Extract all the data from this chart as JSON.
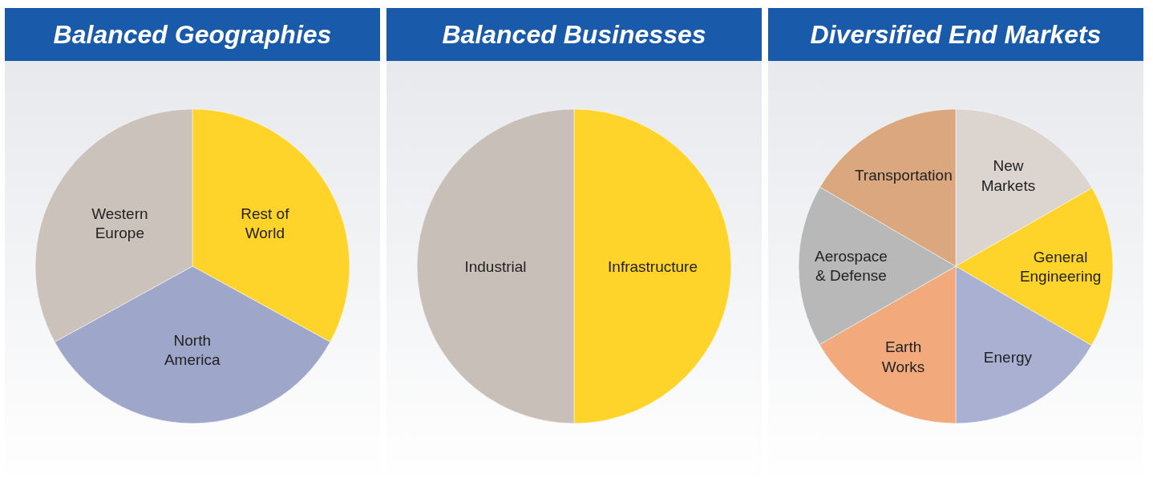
{
  "chart_data": [
    {
      "type": "pie",
      "title": "Balanced Geographies",
      "categories": [
        "Rest of World",
        "North America",
        "Western Europe"
      ],
      "values": [
        33,
        34,
        33
      ],
      "colors": [
        "#ffd42a",
        "#9ea6c9",
        "#cbc2bb"
      ]
    },
    {
      "type": "pie",
      "title": "Balanced Businesses",
      "categories": [
        "Infrastructure",
        "Industrial"
      ],
      "values": [
        50,
        50
      ],
      "colors": [
        "#ffd42a",
        "#c9bfb9"
      ]
    },
    {
      "type": "pie",
      "title": "Diversified End Markets",
      "categories": [
        "New Markets",
        "General Engineering",
        "Energy",
        "Earth Works",
        "Aerospace & Defense",
        "Transportation"
      ],
      "values": [
        16.7,
        16.7,
        16.6,
        16.7,
        16.7,
        16.6
      ],
      "colors": [
        "#dcd4ce",
        "#ffd42a",
        "#a9b0d2",
        "#f2aa7c",
        "#b8b8b8",
        "#dba77f"
      ]
    }
  ]
}
